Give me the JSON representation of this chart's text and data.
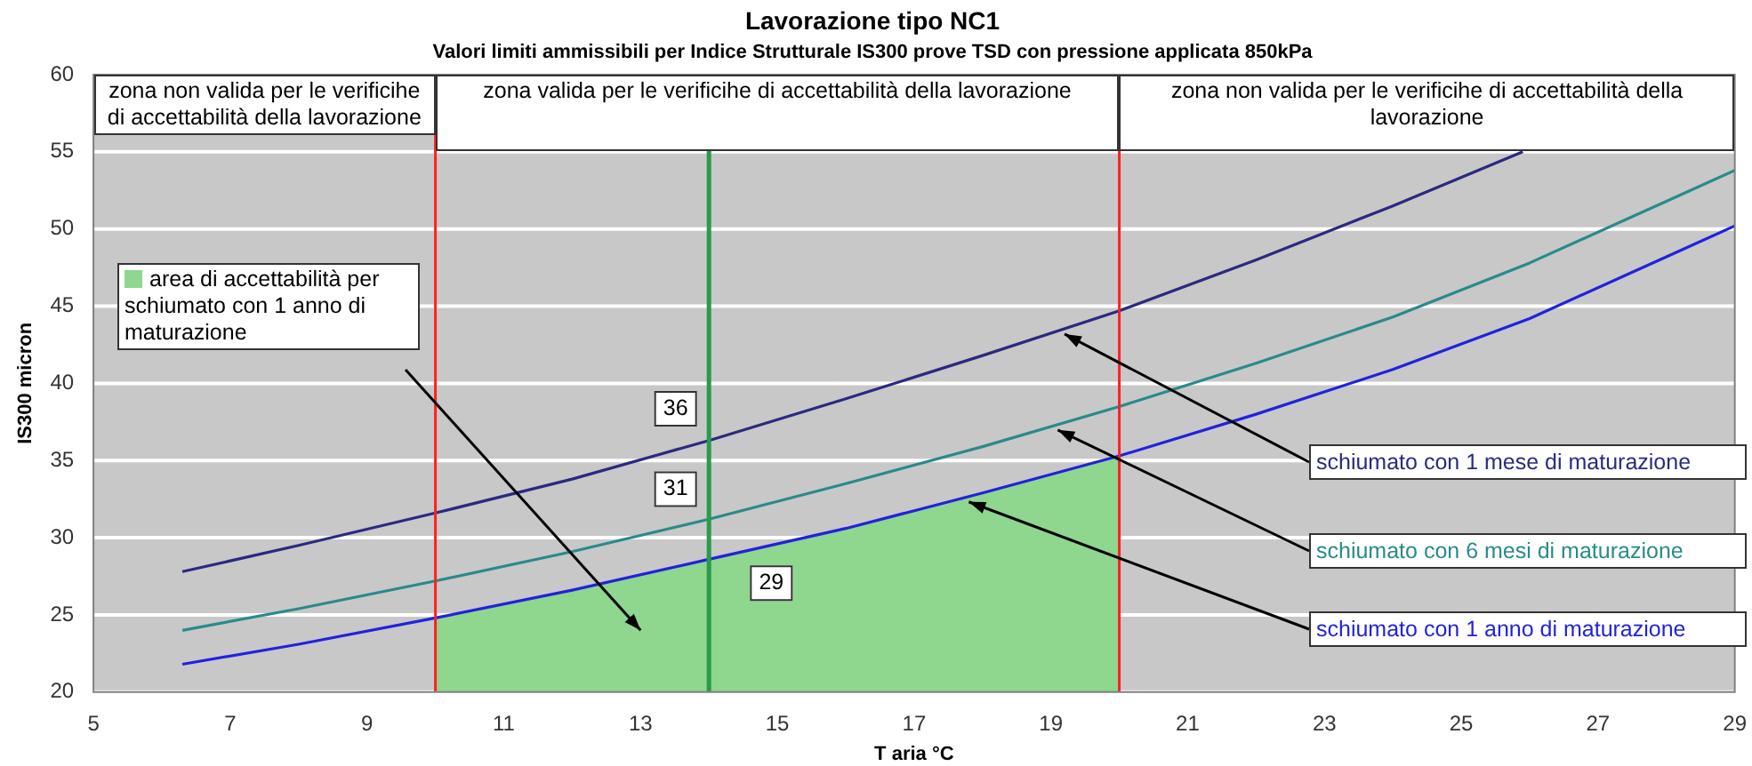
{
  "chart_data": {
    "type": "line",
    "title": "Lavorazione tipo NC1",
    "subtitle": "Valori limiti ammissibili per Indice Strutturale IS300 prove TSD con pressione applicata 850kPa",
    "xlabel": "T aria °C",
    "ylabel": "IS300 micron",
    "xlim": [
      5,
      29
    ],
    "xticks": [
      5,
      7,
      9,
      11,
      13,
      15,
      17,
      19,
      21,
      23,
      25,
      27,
      29
    ],
    "ylim": [
      20,
      60
    ],
    "yticks": [
      20,
      25,
      30,
      35,
      40,
      45,
      50,
      55,
      60
    ],
    "grid": "y",
    "legend": "top left",
    "marker": "none",
    "series": [
      {
        "type": "area",
        "name": "area di accettabilità per schiumato con 1 anno di maturazione",
        "color": "#8fd68f",
        "x": [
          10,
          12,
          14,
          16,
          18,
          20
        ],
        "values": [
          24.8,
          26.6,
          28.6,
          30.6,
          32.9,
          35.3
        ]
      },
      {
        "name": "schiumato con 1 mese di maturazione",
        "color": "#2a2a80",
        "x": [
          6.3,
          8,
          10,
          12,
          14,
          16,
          18,
          20,
          22,
          24,
          25.9
        ],
        "values": [
          27.8,
          29.5,
          31.6,
          33.8,
          36.3,
          39,
          41.8,
          44.7,
          48,
          51.5,
          55
        ]
      },
      {
        "name": "schiumato con 6 mesi di maturazione",
        "color": "#2a8a8a",
        "x": [
          6.3,
          8,
          10,
          12,
          14,
          16,
          18,
          20,
          22,
          24,
          26,
          28,
          29
        ],
        "values": [
          24,
          25.4,
          27.2,
          29.1,
          31.2,
          33.5,
          35.9,
          38.5,
          41.3,
          44.3,
          47.8,
          51.8,
          53.8
        ]
      },
      {
        "name": "schiumato con 1 anno di maturazione",
        "color": "#2222dd",
        "x": [
          6.3,
          8,
          10,
          12,
          14,
          16,
          18,
          20,
          22,
          24,
          26,
          28,
          29
        ],
        "values": [
          21.8,
          23.1,
          24.8,
          26.6,
          28.6,
          30.6,
          32.9,
          35.3,
          38,
          40.9,
          44.2,
          48.2,
          50.2
        ]
      }
    ],
    "ref_lines": [
      {
        "axis": "x",
        "value": 10,
        "color": "#ff2020"
      },
      {
        "axis": "x",
        "value": 20,
        "color": "#ff2020"
      },
      {
        "axis": "x",
        "value": 14,
        "color": "#2a9a4a"
      }
    ],
    "annotations": [
      "zona non valida per le verificihe di accettabilità della lavorazione",
      "zona valida per le verificihe di accettabilità della lavorazione",
      "zona non valida per le verificihe di accettabilità della lavorazione",
      "36",
      "31",
      "29"
    ]
  }
}
